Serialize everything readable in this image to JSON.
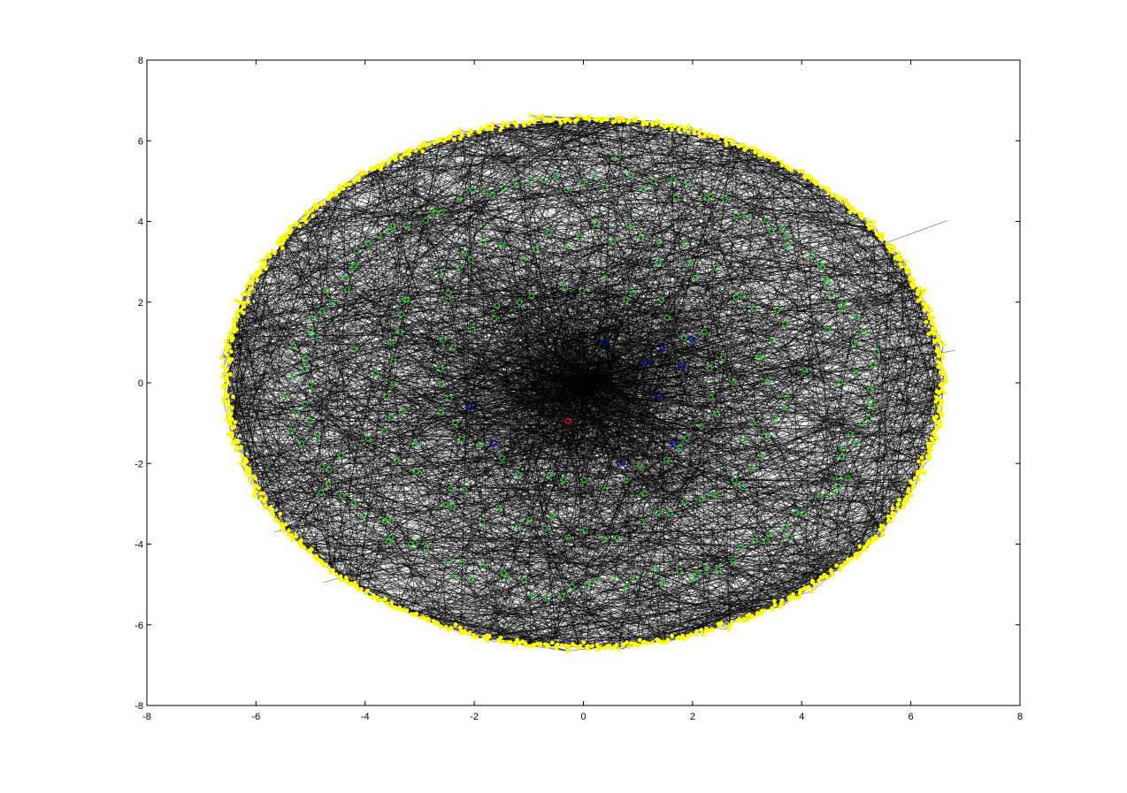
{
  "chart_data": {
    "type": "scatter",
    "title": "",
    "xlabel": "",
    "ylabel": "",
    "xlim": [
      -8,
      8
    ],
    "ylim": [
      -8,
      8
    ],
    "xticks": [
      -8,
      -6,
      -4,
      -2,
      0,
      2,
      4,
      6,
      8
    ],
    "yticks": [
      -8,
      -6,
      -4,
      -2,
      0,
      2,
      4,
      6,
      8
    ],
    "xtick_labels": [
      "-8",
      "-6",
      "-4",
      "-2",
      "0",
      "2",
      "4",
      "6",
      "8"
    ],
    "ytick_labels": [
      "-8",
      "-6",
      "-4",
      "-2",
      "0",
      "2",
      "4",
      "6",
      "8"
    ],
    "grid": false,
    "box": true,
    "series": [
      {
        "color": "#ff0000",
        "marker": "circle-open",
        "points": [
          [
            -0.28,
            -0.95
          ]
        ]
      },
      {
        "color": "#0000cc",
        "marker": "circle-open",
        "points": [
          [
            0.4,
            1.0
          ],
          [
            1.45,
            0.85
          ],
          [
            1.98,
            1.08
          ],
          [
            1.15,
            0.5
          ],
          [
            1.82,
            0.42
          ],
          [
            1.36,
            -0.3
          ],
          [
            -2.08,
            -0.6
          ],
          [
            -1.65,
            -1.5
          ],
          [
            1.65,
            -1.5
          ],
          [
            0.72,
            -1.98
          ]
        ]
      },
      {
        "color": "#22dd22",
        "marker": "circle-open",
        "rings": [
          {
            "radius_x": 5.2,
            "radius_y": 5.1,
            "count": 140,
            "jitter": 0.18
          },
          {
            "radius_x": 3.7,
            "radius_y": 3.6,
            "count": 80,
            "jitter": 0.25
          },
          {
            "radius_x": 2.5,
            "radius_y": 2.4,
            "count": 40,
            "jitter": 0.2
          }
        ]
      },
      {
        "color": "#ffff00",
        "marker": "dot",
        "rings": [
          {
            "radius_x": 6.55,
            "radius_y": 6.55,
            "count": 900,
            "jitter": 0.05
          }
        ]
      }
    ],
    "edges": {
      "color": "#000000",
      "count": 2400
    }
  }
}
